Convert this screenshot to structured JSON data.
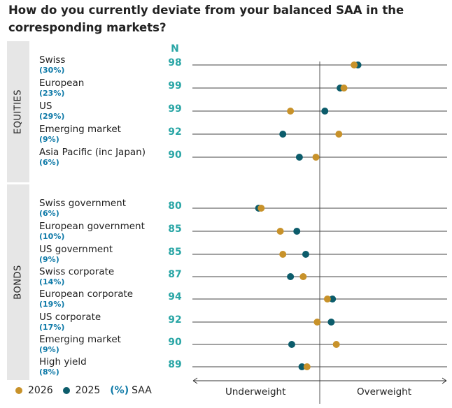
{
  "title": "How do you currently deviate from your balanced SAA in the corresponding markets?",
  "n_header": "N",
  "colors": {
    "y2026": "#c8922a",
    "y2025": "#0c5c6b",
    "saa": "#0f7aa8",
    "n": "#2aa6a6"
  },
  "legend": {
    "label_2026": "2026",
    "label_2025": "2025",
    "saa_label": "(%)",
    "saa_suffix": "SAA"
  },
  "axis": {
    "left_label": "Underweight",
    "right_label": "Overweight"
  },
  "groups": [
    {
      "label": "EQUITIES"
    },
    {
      "label": "BONDS"
    }
  ],
  "chart_data": {
    "type": "scatter",
    "x_scale": "relative deviation from SAA (unlabeled, 0 = neutral)",
    "xlim": [
      -1,
      1
    ],
    "series": [
      {
        "name": "2026",
        "color": "#c8922a"
      },
      {
        "name": "2025",
        "color": "#0c5c6b"
      }
    ],
    "rows": [
      {
        "group": "EQUITIES",
        "name": "Swiss",
        "saa": "(30%)",
        "n": "98",
        "v2026": 0.27,
        "v2025": 0.3
      },
      {
        "group": "EQUITIES",
        "name": "European",
        "saa": "(23%)",
        "n": "99",
        "v2026": 0.19,
        "v2025": 0.16
      },
      {
        "group": "EQUITIES",
        "name": "US",
        "saa": "(29%)",
        "n": "99",
        "v2026": -0.23,
        "v2025": 0.04
      },
      {
        "group": "EQUITIES",
        "name": "Emerging market",
        "saa": "(9%)",
        "n": "92",
        "v2026": 0.15,
        "v2025": -0.29
      },
      {
        "group": "EQUITIES",
        "name": "Asia Pacific (inc Japan)",
        "saa": "(6%)",
        "n": "90",
        "v2026": -0.03,
        "v2025": -0.16
      },
      {
        "group": "BONDS",
        "name": "Swiss government",
        "saa": "(6%)",
        "n": "80",
        "v2026": -0.46,
        "v2025": -0.48
      },
      {
        "group": "BONDS",
        "name": "European government",
        "saa": "(10%)",
        "n": "85",
        "v2026": -0.31,
        "v2025": -0.18
      },
      {
        "group": "BONDS",
        "name": "US government",
        "saa": "(9%)",
        "n": "85",
        "v2026": -0.29,
        "v2025": -0.11
      },
      {
        "group": "BONDS",
        "name": "Swiss corporate",
        "saa": "(14%)",
        "n": "87",
        "v2026": -0.13,
        "v2025": -0.23
      },
      {
        "group": "BONDS",
        "name": "European corporate",
        "saa": "(19%)",
        "n": "94",
        "v2026": 0.06,
        "v2025": 0.1
      },
      {
        "group": "BONDS",
        "name": "US corporate",
        "saa": "(17%)",
        "n": "92",
        "v2026": -0.02,
        "v2025": 0.09
      },
      {
        "group": "BONDS",
        "name": "Emerging market",
        "saa": "(9%)",
        "n": "90",
        "v2026": 0.13,
        "v2025": -0.22
      },
      {
        "group": "BONDS",
        "name": "High yield",
        "saa": "(8%)",
        "n": "89",
        "v2026": -0.1,
        "v2025": -0.14
      }
    ]
  }
}
